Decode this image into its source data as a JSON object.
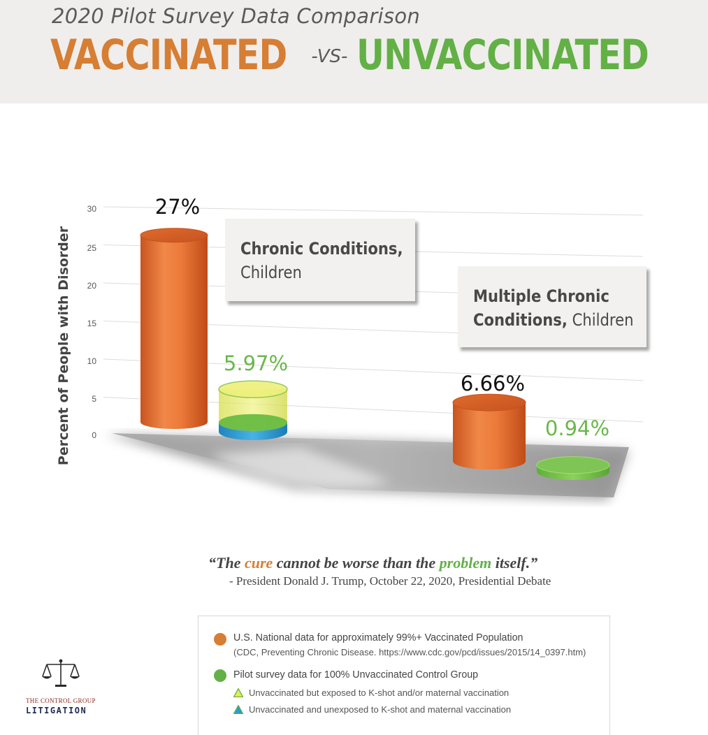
{
  "header": {
    "supertitle": "2020 Pilot Survey Data Comparison",
    "title_vaccinated": "VACCINATED",
    "title_vs": "-VS-",
    "title_unvaccinated": "UNVACCINATED"
  },
  "colors": {
    "vaccinated": "#d67e33",
    "unvaccinated": "#63b046",
    "exposed": "#e6e85a",
    "unexposed": "#2b9bd0"
  },
  "chart_data": {
    "type": "bar",
    "style": "3d-cylinder",
    "ylabel": "Percent of People with Disorder",
    "yticks": [
      0,
      5,
      10,
      15,
      20,
      25,
      30
    ],
    "ylim": [
      0,
      30
    ],
    "categories": [
      {
        "line1_strong": "Chronic Conditions,",
        "line2": "Children"
      },
      {
        "line1_strong": "Multiple Chronic",
        "line2_strong": "Conditions,",
        "line2": "Children"
      }
    ],
    "series": [
      {
        "name": "U.S. National data for approximately 99%+ Vaccinated Population",
        "values": [
          27,
          6.66
        ],
        "labels": [
          "27%",
          "6.66%"
        ]
      },
      {
        "name": "Pilot survey data for 100% Unvaccinated Control Group",
        "values": [
          5.97,
          0.94
        ],
        "labels": [
          "5.97%",
          "0.94%"
        ]
      }
    ],
    "unvaccinated_breakdown": [
      {
        "category": 0,
        "unexposed": 1.3,
        "exposed": 4.67
      }
    ]
  },
  "quote": {
    "open": "“The ",
    "cure": "cure",
    "mid": " cannot be worse than the ",
    "problem": "problem",
    "close": " itself.”",
    "attribution": "- President Donald J. Trump, October 22, 2020, Presidential Debate"
  },
  "legend": {
    "vaccinated": "U.S. National data for approximately 99%+ Vaccinated Population",
    "vaccinated_source": "(CDC, Preventing Chronic Disease. https://www.cdc.gov/pcd/issues/2015/14_0397.htm)",
    "unvaccinated": "Pilot survey data for 100% Unvaccinated Control Group",
    "exposed": "Unvaccinated but exposed to K-shot and/or maternal vaccination",
    "unexposed": "Unvaccinated and unexposed to K-shot and maternal vaccination"
  },
  "logo": {
    "line1": "THE CONTROL GROUP",
    "line2": "LITIGATION",
    "icon": "scales-of-justice-icon"
  }
}
